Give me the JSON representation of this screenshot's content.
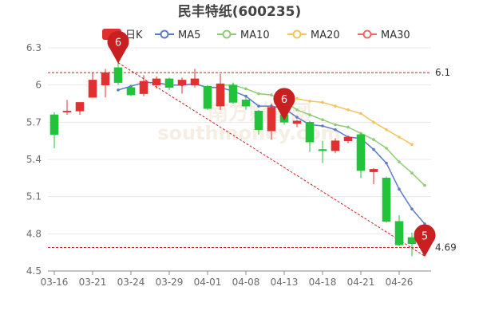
{
  "chart_data": {
    "type": "candlestick",
    "title": "民丰特纸(600235)",
    "legend": [
      {
        "key": "kline",
        "name": "日K",
        "color": "#e23030"
      },
      {
        "key": "ma5",
        "name": "MA5",
        "color": "#5b7bc8"
      },
      {
        "key": "ma10",
        "name": "MA10",
        "color": "#91cc75"
      },
      {
        "key": "ma20",
        "name": "MA20",
        "color": "#f5c35b"
      },
      {
        "key": "ma30",
        "name": "MA30",
        "color": "#ee6666"
      }
    ],
    "legend_position": "top-center",
    "grid": true,
    "x_tick_labels": [
      "03-16",
      "03-21",
      "03-24",
      "03-29",
      "04-01",
      "04-08",
      "04-13",
      "04-18",
      "04-21",
      "04-26"
    ],
    "y_ticks": [
      "4.5",
      "4.8",
      "5.1",
      "5.4",
      "5.7",
      "6",
      "6.3"
    ],
    "ylim": [
      4.5,
      6.3
    ],
    "candles": [
      {
        "date": "03-16",
        "o": 5.76,
        "c": 5.6,
        "h": 5.78,
        "l": 5.49
      },
      {
        "date": "03-17",
        "o": 5.79,
        "c": 5.79,
        "h": 5.88,
        "l": 5.76
      },
      {
        "date": "03-18",
        "o": 5.79,
        "c": 5.86,
        "h": 5.86,
        "l": 5.76
      },
      {
        "date": "03-21",
        "o": 5.9,
        "c": 6.04,
        "h": 6.1,
        "l": 5.9
      },
      {
        "date": "03-22",
        "o": 6.0,
        "c": 6.1,
        "h": 6.13,
        "l": 5.9
      },
      {
        "date": "03-23",
        "o": 6.14,
        "c": 6.02,
        "h": 6.18,
        "l": 6.0
      },
      {
        "date": "03-24",
        "o": 5.98,
        "c": 5.92,
        "h": 6.0,
        "l": 5.91
      },
      {
        "date": "03-25",
        "o": 5.93,
        "c": 6.03,
        "h": 6.08,
        "l": 5.91
      },
      {
        "date": "03-28",
        "o": 6.0,
        "c": 6.05,
        "h": 6.07,
        "l": 5.97
      },
      {
        "date": "03-29",
        "o": 6.05,
        "c": 5.98,
        "h": 6.06,
        "l": 5.96
      },
      {
        "date": "03-30",
        "o": 6.0,
        "c": 6.04,
        "h": 6.06,
        "l": 5.93
      },
      {
        "date": "03-31",
        "o": 6.0,
        "c": 6.05,
        "h": 6.13,
        "l": 5.98
      },
      {
        "date": "04-01",
        "o": 5.99,
        "c": 5.81,
        "h": 6.0,
        "l": 5.8
      },
      {
        "date": "04-06",
        "o": 5.83,
        "c": 6.01,
        "h": 6.09,
        "l": 5.8
      },
      {
        "date": "04-07",
        "o": 6.0,
        "c": 5.86,
        "h": 6.02,
        "l": 5.85
      },
      {
        "date": "04-08",
        "o": 5.88,
        "c": 5.83,
        "h": 5.9,
        "l": 5.8
      },
      {
        "date": "04-11",
        "o": 5.79,
        "c": 5.64,
        "h": 5.8,
        "l": 5.6
      },
      {
        "date": "04-12",
        "o": 5.63,
        "c": 5.82,
        "h": 5.85,
        "l": 5.56
      },
      {
        "date": "04-13",
        "o": 5.76,
        "c": 5.7,
        "h": 5.82,
        "l": 5.68
      },
      {
        "date": "04-14",
        "o": 5.69,
        "c": 5.71,
        "h": 5.72,
        "l": 5.66
      },
      {
        "date": "04-15",
        "o": 5.7,
        "c": 5.54,
        "h": 5.71,
        "l": 5.46
      },
      {
        "date": "04-18",
        "o": 5.48,
        "c": 5.47,
        "h": 5.55,
        "l": 5.37
      },
      {
        "date": "04-19",
        "o": 5.47,
        "c": 5.55,
        "h": 5.57,
        "l": 5.45
      },
      {
        "date": "04-20",
        "o": 5.55,
        "c": 5.58,
        "h": 5.59,
        "l": 5.53
      },
      {
        "date": "04-21",
        "o": 5.6,
        "c": 5.31,
        "h": 5.61,
        "l": 5.25
      },
      {
        "date": "04-22",
        "o": 5.3,
        "c": 5.32,
        "h": 5.33,
        "l": 5.2
      },
      {
        "date": "04-25",
        "o": 5.25,
        "c": 4.9,
        "h": 5.26,
        "l": 4.89
      },
      {
        "date": "04-26",
        "o": 4.9,
        "c": 4.71,
        "h": 4.95,
        "l": 4.7
      },
      {
        "date": "04-27",
        "o": 4.77,
        "c": 4.72,
        "h": 4.81,
        "l": 4.62
      },
      {
        "date": "04-28",
        "o": 4.75,
        "c": 4.69,
        "h": 4.82,
        "l": 4.62
      }
    ],
    "ma5": [
      null,
      null,
      null,
      null,
      null,
      5.96,
      5.99,
      6.02,
      6.02,
      6.0,
      6.0,
      6.01,
      5.98,
      5.98,
      5.95,
      5.91,
      5.83,
      5.83,
      5.81,
      5.74,
      5.68,
      5.67,
      5.64,
      5.58,
      5.57,
      5.48,
      5.37,
      5.16,
      5.0,
      4.88
    ],
    "ma10": [
      null,
      null,
      null,
      null,
      null,
      null,
      null,
      null,
      null,
      null,
      null,
      null,
      null,
      6.0,
      6.0,
      5.97,
      5.93,
      5.92,
      5.87,
      5.8,
      5.76,
      5.72,
      5.68,
      5.66,
      5.61,
      5.56,
      5.49,
      5.38,
      5.29,
      5.19
    ],
    "ma20": [
      null,
      null,
      null,
      null,
      null,
      null,
      null,
      null,
      null,
      null,
      null,
      null,
      null,
      null,
      null,
      null,
      null,
      null,
      null,
      5.89,
      5.87,
      5.86,
      5.83,
      5.8,
      5.77,
      5.7,
      5.64,
      5.58,
      5.52,
      null
    ],
    "ma30": [],
    "ref_high": {
      "value": 6.1,
      "label": "6.1"
    },
    "ref_low": {
      "value": 4.69,
      "label": "4.69"
    },
    "pin_high": {
      "index": 5,
      "price": 6.18,
      "label": "6"
    },
    "pin_mid": {
      "index": 18,
      "price": 5.72,
      "label": "6"
    },
    "pin_low": {
      "index": 29,
      "price": 4.62,
      "label": "5"
    }
  },
  "watermark": "南方财富网 southmoney.com",
  "colors": {
    "up": "#e23030",
    "down": "#21c33b",
    "grid": "#e6e8ef",
    "ref": "#c82020",
    "axis": "#6b6b6b"
  }
}
